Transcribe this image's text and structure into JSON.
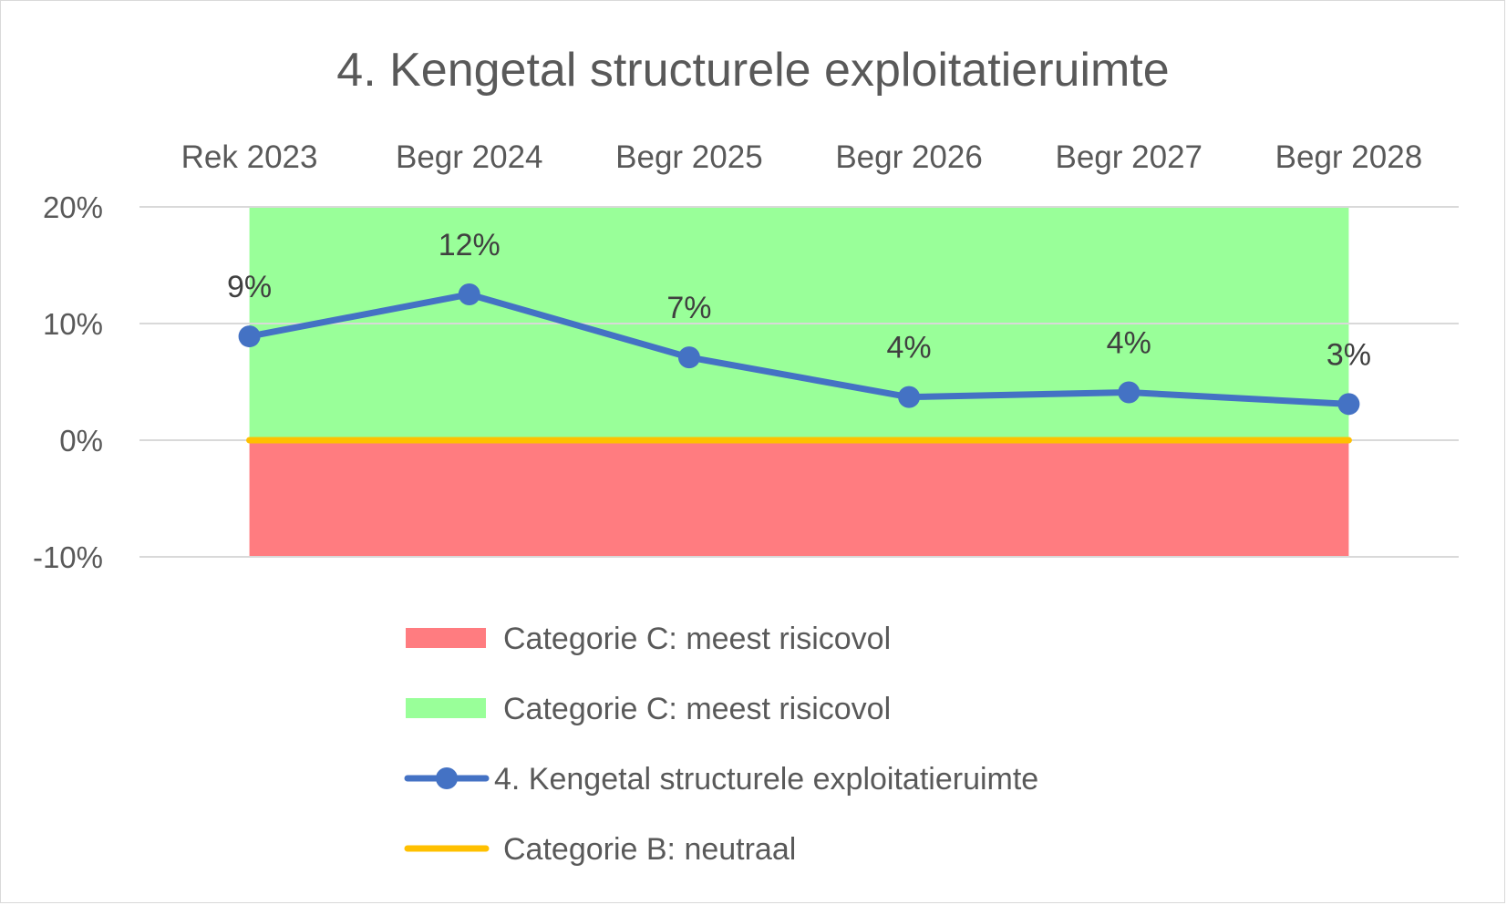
{
  "chart_data": {
    "type": "line",
    "title": "4. Kengetal structurele exploitatieruimte",
    "xlabel": "",
    "ylabel": "",
    "categories": [
      "Rek 2023",
      "Begr 2024",
      "Begr 2025",
      "Begr 2026",
      "Begr 2027",
      "Begr 2028"
    ],
    "y_ticks": [
      "20%",
      "10%",
      "0%",
      "-10%"
    ],
    "y_tick_values": [
      20,
      10,
      0,
      -10
    ],
    "ylim": [
      -10,
      20
    ],
    "y_unit": "%",
    "x_axis_position": "top",
    "grid": true,
    "legend_position": "bottom",
    "bands": [
      {
        "name": "Categorie C: meest risicovol",
        "from": -10,
        "to": 0,
        "color": "#ff7c80"
      },
      {
        "name": "Categorie C: meest risicovol",
        "from": 0,
        "to": 20,
        "color": "#99ff99"
      }
    ],
    "series": [
      {
        "name": "4. Kengetal structurele exploitatieruimte",
        "values": [
          8.9,
          12.5,
          7.1,
          3.7,
          4.1,
          3.1
        ],
        "labels": [
          "9%",
          "12%",
          "7%",
          "4%",
          "4%",
          "3%"
        ],
        "color": "#4472c4"
      }
    ],
    "reference_lines": [
      {
        "name": "Categorie B: neutraal",
        "value": 0,
        "color": "#ffc000"
      }
    ],
    "legend": [
      {
        "label": "Categorie C: meest risicovol",
        "kind": "box",
        "color": "#ff7c80"
      },
      {
        "label": "Categorie C: meest risicovol",
        "kind": "box",
        "color": "#99ff99"
      },
      {
        "label": "4. Kengetal structurele exploitatieruimte",
        "kind": "line-marker",
        "color": "#4472c4"
      },
      {
        "label": "Categorie B: neutraal",
        "kind": "line",
        "color": "#ffc000"
      }
    ]
  }
}
